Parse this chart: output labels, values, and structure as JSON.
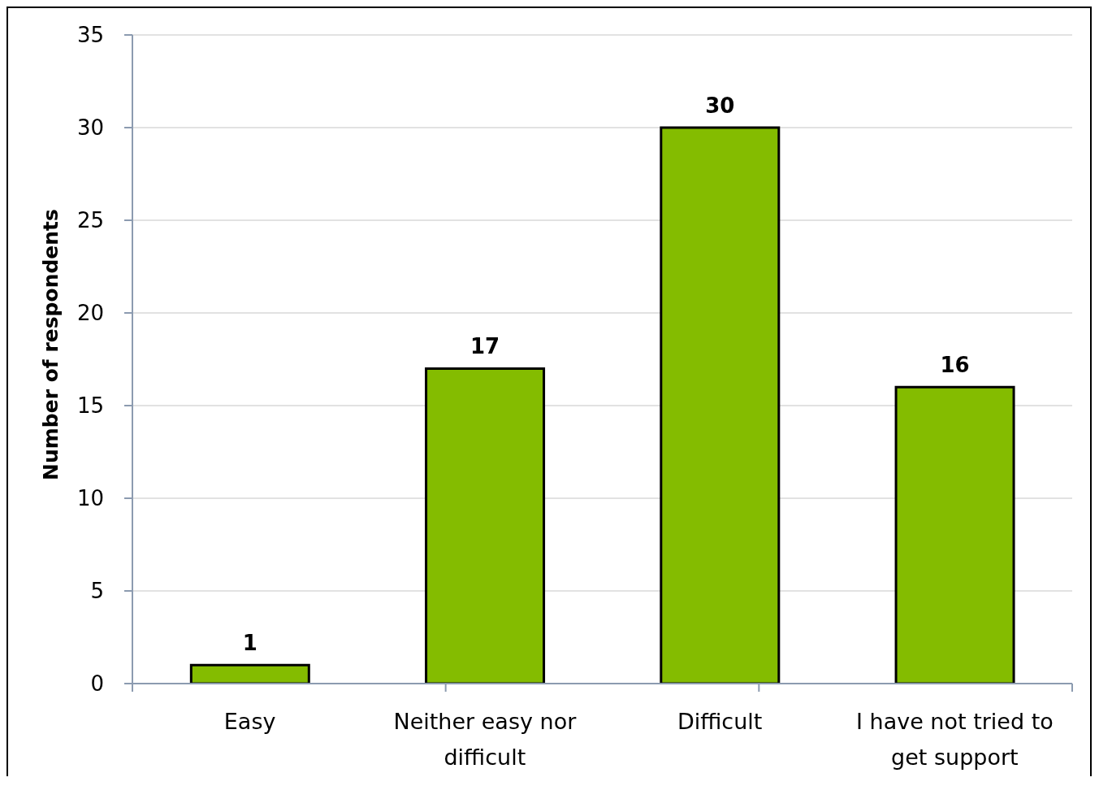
{
  "chart_data": {
    "type": "bar",
    "categories": [
      "Easy",
      "Neither easy nor difficult",
      "Difficult",
      "I have not tried to get support"
    ],
    "values": [
      1,
      17,
      30,
      16
    ],
    "color": "#84bc00",
    "ylabel": "Number of respondents",
    "ylim": [
      0,
      35
    ],
    "yticks": [
      0,
      5,
      10,
      15,
      20,
      25,
      30,
      35
    ],
    "grid": "y",
    "data_labels": true
  }
}
